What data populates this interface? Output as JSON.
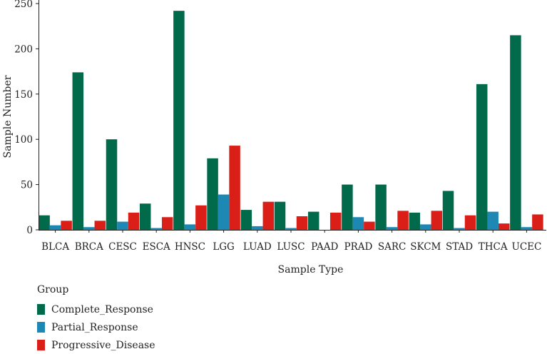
{
  "chart_data": {
    "type": "bar",
    "xlabel": "Sample Type",
    "ylabel": "Sample Number",
    "ylim": [
      0,
      250
    ],
    "yticks": [
      0,
      50,
      100,
      150,
      200,
      250
    ],
    "grid": false,
    "legend_position": "bottom-left",
    "legend_title": "Group",
    "categories": [
      "BLCA",
      "BRCA",
      "CESC",
      "ESCA",
      "HNSC",
      "LGG",
      "LUAD",
      "LUSC",
      "PAAD",
      "PRAD",
      "SARC",
      "SKCM",
      "STAD",
      "THCA",
      "UCEC"
    ],
    "series": [
      {
        "name": "Complete_Response",
        "color": "#006A4B",
        "values": [
          16,
          174,
          100,
          29,
          242,
          79,
          22,
          31,
          20,
          50,
          50,
          19,
          43,
          161,
          215
        ]
      },
      {
        "name": "Partial_Response",
        "color": "#1D88B4",
        "values": [
          5,
          3,
          9,
          2,
          6,
          39,
          4,
          2,
          0,
          14,
          3,
          6,
          2,
          20,
          3
        ]
      },
      {
        "name": "Progressive_Disease",
        "color": "#DA1E18",
        "values": [
          10,
          10,
          19,
          14,
          27,
          93,
          31,
          15,
          19,
          9,
          21,
          21,
          16,
          7,
          17
        ]
      }
    ]
  }
}
